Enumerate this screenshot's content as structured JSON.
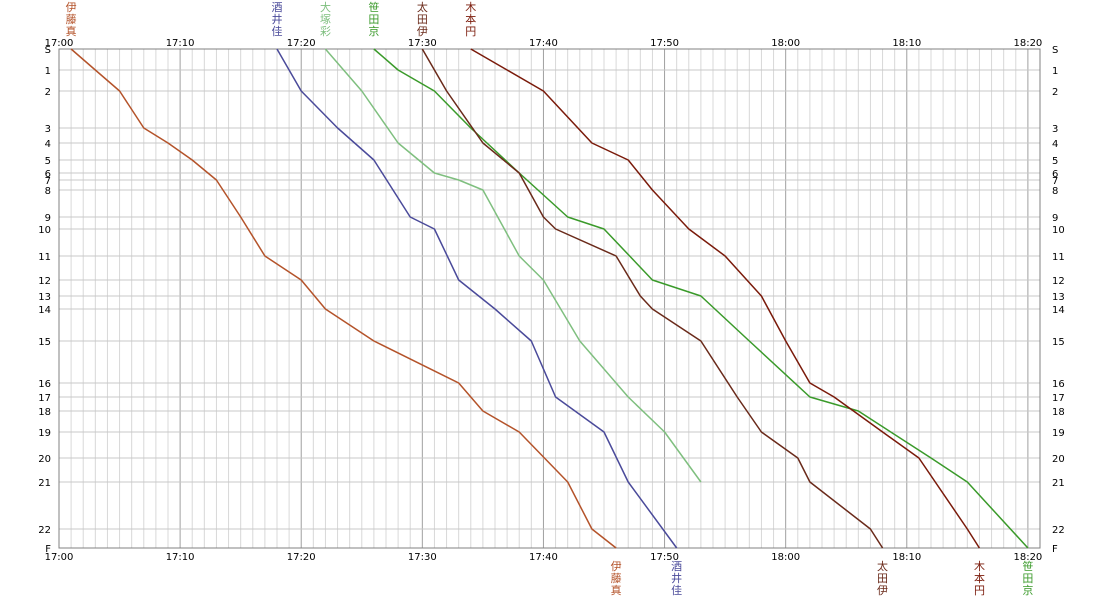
{
  "chart_data": {
    "type": "line",
    "x_ticks": [
      "17:00",
      "17:10",
      "17:20",
      "17:30",
      "17:40",
      "17:50",
      "18:00",
      "18:10",
      "18:20"
    ],
    "x_range": [
      "17:00",
      "18:21"
    ],
    "y_ticks": [
      "S",
      "1",
      "2",
      "3",
      "4",
      "5",
      "6",
      "7",
      "8",
      "9",
      "10",
      "11",
      "12",
      "13",
      "14",
      "15",
      "16",
      "17",
      "18",
      "19",
      "20",
      "21",
      "22",
      "F"
    ],
    "grid": true,
    "series": [
      {
        "name": "伊藤真",
        "color": "#b4532a",
        "label_position": "top-and-bottom",
        "points": [
          [
            "17:01",
            "S"
          ],
          [
            "17:03",
            "1"
          ],
          [
            "17:05",
            "2"
          ],
          [
            "17:07",
            "3"
          ],
          [
            "17:09",
            "4"
          ],
          [
            "17:11",
            "5"
          ],
          [
            "17:13",
            "7"
          ],
          [
            "17:15",
            "9"
          ],
          [
            "17:17",
            "11"
          ],
          [
            "17:20",
            "12"
          ],
          [
            "17:22",
            "14"
          ],
          [
            "17:26",
            "15"
          ],
          [
            "17:33",
            "16"
          ],
          [
            "17:35",
            "18"
          ],
          [
            "17:38",
            "19"
          ],
          [
            "17:42",
            "21"
          ],
          [
            "17:44",
            "22"
          ],
          [
            "17:46",
            "F"
          ]
        ]
      },
      {
        "name": "酒井佳",
        "color": "#4a4a9a",
        "label_position": "top-and-bottom",
        "points": [
          [
            "17:18",
            "S"
          ],
          [
            "17:20",
            "2"
          ],
          [
            "17:23",
            "3"
          ],
          [
            "17:26",
            "5"
          ],
          [
            "17:29",
            "9"
          ],
          [
            "17:31",
            "10"
          ],
          [
            "17:33",
            "12"
          ],
          [
            "17:36",
            "14"
          ],
          [
            "17:39",
            "15"
          ],
          [
            "17:41",
            "17"
          ],
          [
            "17:45",
            "19"
          ],
          [
            "17:47",
            "21"
          ],
          [
            "17:51",
            "F"
          ]
        ]
      },
      {
        "name": "大塚彩",
        "color": "#7fbf7f",
        "label_position": "top",
        "points": [
          [
            "17:22",
            "S"
          ],
          [
            "17:25",
            "2"
          ],
          [
            "17:28",
            "4"
          ],
          [
            "17:31",
            "6"
          ],
          [
            "17:33",
            "7"
          ],
          [
            "17:35",
            "8"
          ],
          [
            "17:38",
            "11"
          ],
          [
            "17:40",
            "12"
          ],
          [
            "17:43",
            "15"
          ],
          [
            "17:47",
            "17"
          ],
          [
            "17:50",
            "19"
          ],
          [
            "17:53",
            "21"
          ]
        ]
      },
      {
        "name": "笹田京",
        "color": "#3a9a2a",
        "label_position": "top-and-bottom",
        "points": [
          [
            "17:26",
            "S"
          ],
          [
            "17:28",
            "1"
          ],
          [
            "17:31",
            "2"
          ],
          [
            "17:34",
            "3"
          ],
          [
            "17:38",
            "6"
          ],
          [
            "17:42",
            "9"
          ],
          [
            "17:45",
            "10"
          ],
          [
            "17:49",
            "12"
          ],
          [
            "17:53",
            "13"
          ],
          [
            "17:57",
            "15"
          ],
          [
            "18:02",
            "17"
          ],
          [
            "18:06",
            "18"
          ],
          [
            "18:12",
            "20"
          ],
          [
            "18:15",
            "21"
          ],
          [
            "18:20",
            "F"
          ]
        ]
      },
      {
        "name": "太田伊",
        "color": "#6a2a1a",
        "label_position": "top-and-bottom",
        "points": [
          [
            "17:30",
            "S"
          ],
          [
            "17:32",
            "2"
          ],
          [
            "17:35",
            "4"
          ],
          [
            "17:38",
            "6"
          ],
          [
            "17:40",
            "9"
          ],
          [
            "17:41",
            "10"
          ],
          [
            "17:46",
            "11"
          ],
          [
            "17:48",
            "13"
          ],
          [
            "17:49",
            "14"
          ],
          [
            "17:53",
            "15"
          ],
          [
            "17:56",
            "17"
          ],
          [
            "17:58",
            "19"
          ],
          [
            "18:01",
            "20"
          ],
          [
            "18:02",
            "21"
          ],
          [
            "18:07",
            "22"
          ],
          [
            "18:08",
            "F"
          ]
        ]
      },
      {
        "name": "木本円",
        "color": "#7a1a0a",
        "label_position": "top-and-bottom",
        "points": [
          [
            "17:34",
            "S"
          ],
          [
            "17:37",
            "1"
          ],
          [
            "17:40",
            "2"
          ],
          [
            "17:44",
            "4"
          ],
          [
            "17:47",
            "5"
          ],
          [
            "17:49",
            "8"
          ],
          [
            "17:52",
            "10"
          ],
          [
            "17:55",
            "11"
          ],
          [
            "17:58",
            "13"
          ],
          [
            "18:00",
            "15"
          ],
          [
            "18:02",
            "16"
          ],
          [
            "18:04",
            "17"
          ],
          [
            "18:08",
            "19"
          ],
          [
            "18:11",
            "20"
          ],
          [
            "18:15",
            "22"
          ],
          [
            "18:16",
            "F"
          ]
        ]
      }
    ]
  }
}
